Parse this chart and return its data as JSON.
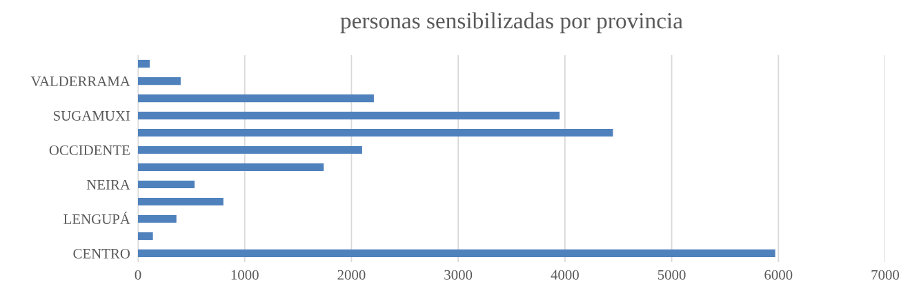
{
  "chart_data": {
    "type": "bar",
    "orientation": "horizontal",
    "title": "personas sensibilizadas por provincia",
    "categories": [
      null,
      "VALDERRAMA",
      null,
      "SUGAMUXI",
      null,
      "OCCIDENTE",
      null,
      "NEIRA",
      null,
      "LENGUPÁ",
      null,
      "CENTRO"
    ],
    "values": [
      110,
      400,
      2210,
      3950,
      4450,
      2100,
      1740,
      530,
      800,
      360,
      140,
      5970
    ],
    "color": "#4f81bd",
    "xlim": [
      0,
      7000
    ],
    "xticks": [
      0,
      1000,
      2000,
      3000,
      4000,
      5000,
      6000,
      7000
    ],
    "grid": "x"
  }
}
